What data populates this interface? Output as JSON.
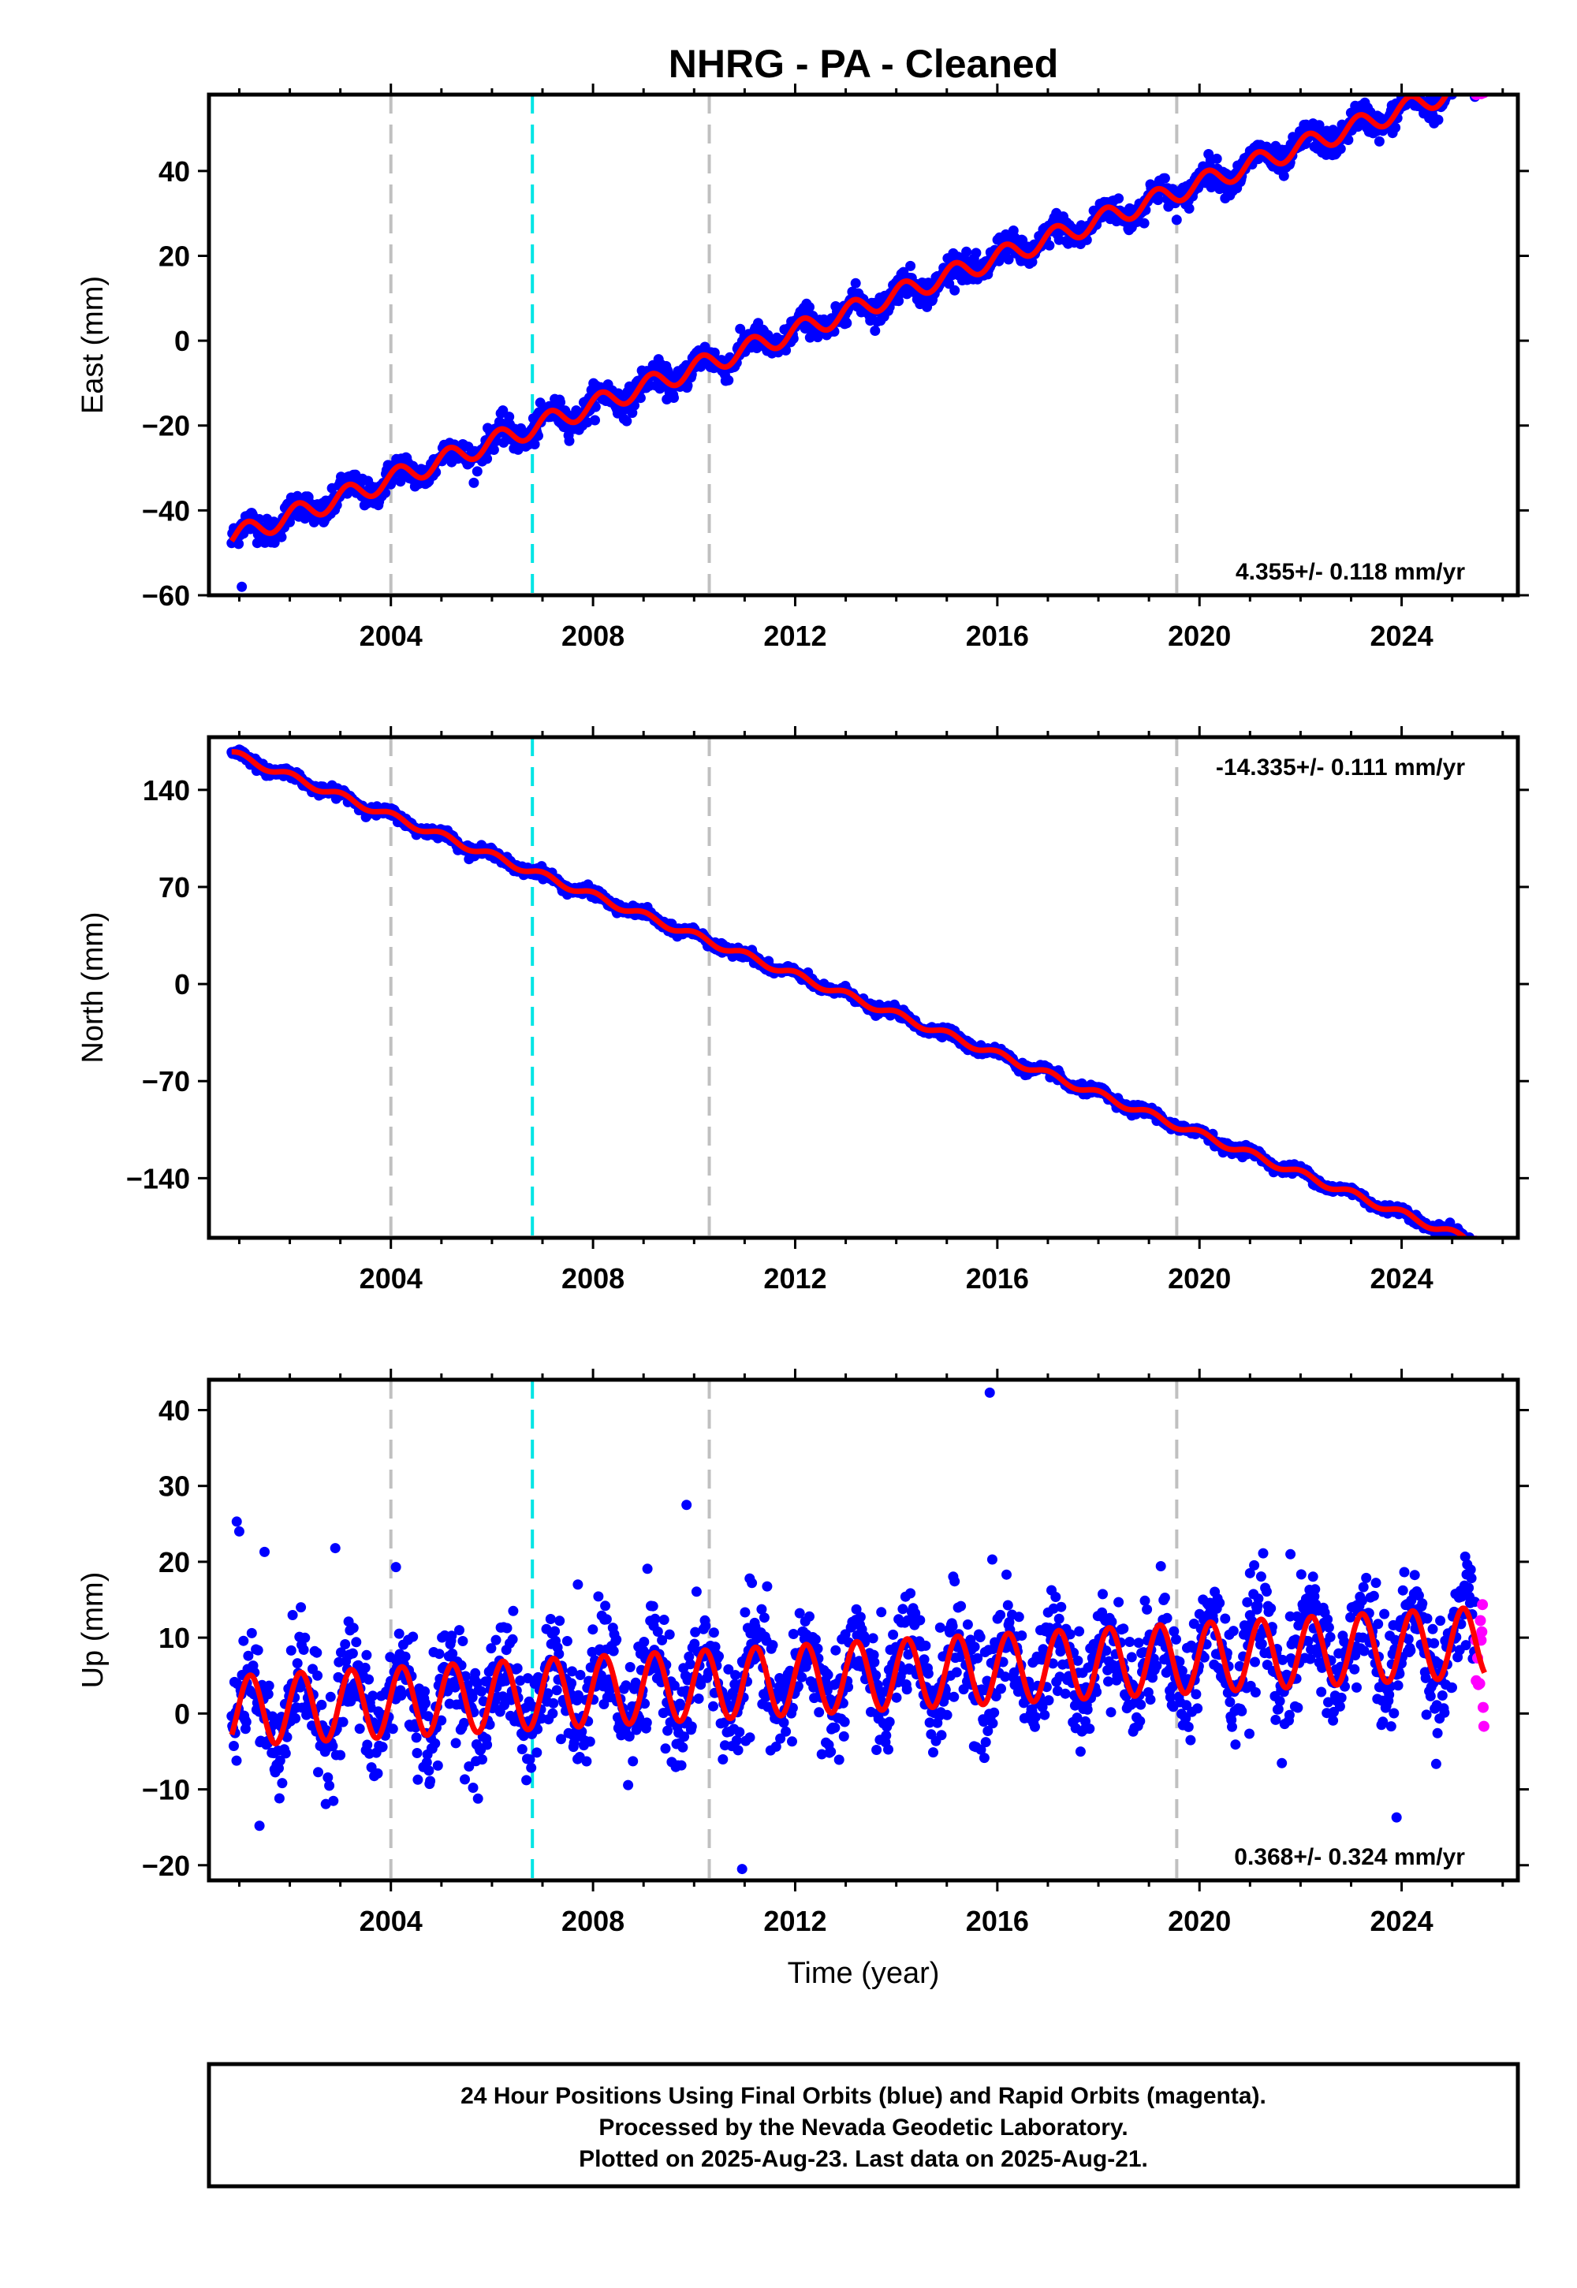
{
  "chart_data": {
    "type": "scatter",
    "title": "NHRG  - PA - Cleaned",
    "xlabel": "Time (year)",
    "xlim": [
      2000.4,
      2026.3
    ],
    "x_ticks": [
      2004,
      2008,
      2012,
      2016,
      2020,
      2024
    ],
    "x_tick_labels": [
      "2004",
      "2008",
      "2012",
      "2016",
      "2020",
      "2024"
    ],
    "vertical_lines": {
      "gray_dashed": [
        2004.0,
        2010.3,
        2019.55
      ],
      "cyan_dashed": [
        2006.8
      ]
    },
    "data_start": 2000.85,
    "data_end": 2025.64,
    "rapid_start": 2025.45,
    "colors": {
      "final_orbits": "#0000ff",
      "rapid_orbits": "#ff00ff",
      "model_fit": "#ff0000",
      "gray_line": "#c0c0c0",
      "cyan_line": "#00e5e5"
    },
    "panels": [
      {
        "name": "East",
        "ylabel": "East (mm)",
        "ylim": [
          -60,
          58
        ],
        "y_ticks": [
          -60,
          -40,
          -20,
          0,
          20,
          40
        ],
        "y_tick_labels": [
          "−60",
          "−40",
          "−20",
          "0",
          "20",
          "40"
        ],
        "rate": "4.355+/- 0.118 mm/yr",
        "rate_position": "bottom-right",
        "trend_at_2000": -50.1,
        "slope_mm_per_yr": 4.355,
        "seasonal_amplitude": 2.4,
        "seasonal_phase": 0.6,
        "noise": 1.6,
        "outliers": [
          [
            2001.05,
            -58
          ]
        ]
      },
      {
        "name": "North",
        "ylabel": "North (mm)",
        "ylim": [
          -183,
          178
        ],
        "y_ticks": [
          -140,
          -70,
          0,
          70,
          140
        ],
        "y_tick_labels": [
          "−140",
          "−70",
          "0",
          "70",
          "140"
        ],
        "rate": "-14.335+/- 0.111 mm/yr",
        "rate_position": "top-right",
        "trend_at_2000": 178.5,
        "slope_mm_per_yr": -14.335,
        "seasonal_amplitude": 2.6,
        "seasonal_phase": 1.4,
        "noise": 1.7,
        "outliers": []
      },
      {
        "name": "Up",
        "ylabel": "Up (mm)",
        "ylim": [
          -22,
          44
        ],
        "y_ticks": [
          -20,
          -10,
          0,
          10,
          20,
          30,
          40
        ],
        "y_tick_labels": [
          "−20",
          "−10",
          "0",
          "10",
          "20",
          "30",
          "40"
        ],
        "rate": "0.368+/- 0.324 mm/yr",
        "rate_position": "bottom-right",
        "trend_at_2000": 0.0,
        "slope_mm_per_yr": 0.368,
        "seasonal_amplitude": 4.6,
        "seasonal_phase": 0.2,
        "noise": 3.6,
        "outliers": [
          [
            2015.85,
            42.3
          ],
          [
            2009.85,
            27.5
          ],
          [
            2000.95,
            25.3
          ],
          [
            2001.0,
            24.0
          ],
          [
            2001.5,
            21.3
          ],
          [
            2002.9,
            21.8
          ],
          [
            2021.8,
            21.0
          ],
          [
            2021.0,
            18.5
          ],
          [
            2004.1,
            19.3
          ],
          [
            2015.9,
            20.3
          ],
          [
            2011.1,
            17.8
          ],
          [
            2010.95,
            -20.5
          ],
          [
            2007.7,
            17.0
          ],
          [
            2001.4,
            -14.8
          ],
          [
            2023.9,
            -13.7
          ]
        ]
      }
    ],
    "footer_lines": [
      "24 Hour Positions Using Final Orbits (blue) and Rapid Orbits (magenta).",
      "Processed by the Nevada Geodetic Laboratory.",
      "Plotted on 2025-Aug-23. Last data on 2025-Aug-21."
    ]
  }
}
